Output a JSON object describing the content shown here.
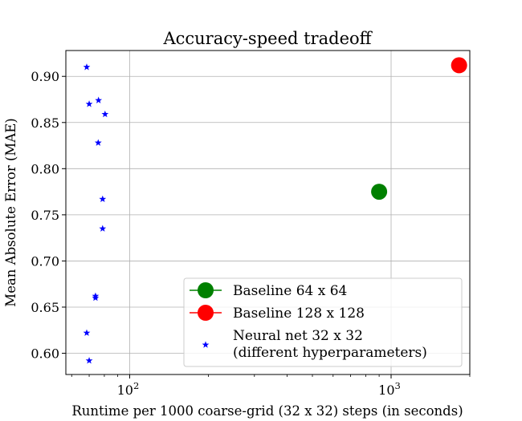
{
  "chart_data": {
    "type": "scatter",
    "title": "Accuracy-speed tradeoff",
    "xlabel": "Runtime per 1000 coarse-grid (32 x 32) steps (in seconds)",
    "ylabel": "Mean Absolute Error (MAE)",
    "xscale": "log",
    "xlim": [
      57,
      2000
    ],
    "ylim": [
      0.577,
      0.928
    ],
    "grid": true,
    "legend_position": "lower-right",
    "x_ticks": [
      {
        "value": 100,
        "base": "10",
        "exp": "2"
      },
      {
        "value": 1000,
        "base": "10",
        "exp": "3"
      }
    ],
    "y_ticks": [
      {
        "value": 0.6,
        "label": "0.60"
      },
      {
        "value": 0.65,
        "label": "0.65"
      },
      {
        "value": 0.7,
        "label": "0.70"
      },
      {
        "value": 0.75,
        "label": "0.75"
      },
      {
        "value": 0.8,
        "label": "0.80"
      },
      {
        "value": 0.85,
        "label": "0.85"
      },
      {
        "value": 0.9,
        "label": "0.90"
      }
    ],
    "series": [
      {
        "name": "Baseline 64 x 64",
        "color": "#008000",
        "marker": "circle",
        "points": [
          {
            "x": 900,
            "y": 0.775
          }
        ]
      },
      {
        "name": "Baseline 128 x 128",
        "color": "#ff0000",
        "marker": "circle",
        "points": [
          {
            "x": 1820,
            "y": 0.912
          }
        ]
      },
      {
        "name": "Neural net 32 x 32\n(different hyperparameters)",
        "color": "#0000ff",
        "marker": "star",
        "points": [
          {
            "x": 68.5,
            "y": 0.91
          },
          {
            "x": 70.0,
            "y": 0.87
          },
          {
            "x": 76.0,
            "y": 0.874
          },
          {
            "x": 80.5,
            "y": 0.859
          },
          {
            "x": 75.8,
            "y": 0.828
          },
          {
            "x": 78.8,
            "y": 0.767
          },
          {
            "x": 78.8,
            "y": 0.735
          },
          {
            "x": 74.0,
            "y": 0.662
          },
          {
            "x": 74.0,
            "y": 0.66
          },
          {
            "x": 68.5,
            "y": 0.622
          },
          {
            "x": 70.0,
            "y": 0.592
          }
        ]
      }
    ]
  },
  "legend": {
    "entries": [
      {
        "label": "Baseline 64 x 64",
        "color": "#008000",
        "marker": "circle-line"
      },
      {
        "label": "Baseline 128 x 128",
        "color": "#ff0000",
        "marker": "circle-line"
      },
      {
        "label": "Neural net 32 x 32",
        "label2": "(different hyperparameters)",
        "color": "#0000ff",
        "marker": "star"
      }
    ]
  }
}
